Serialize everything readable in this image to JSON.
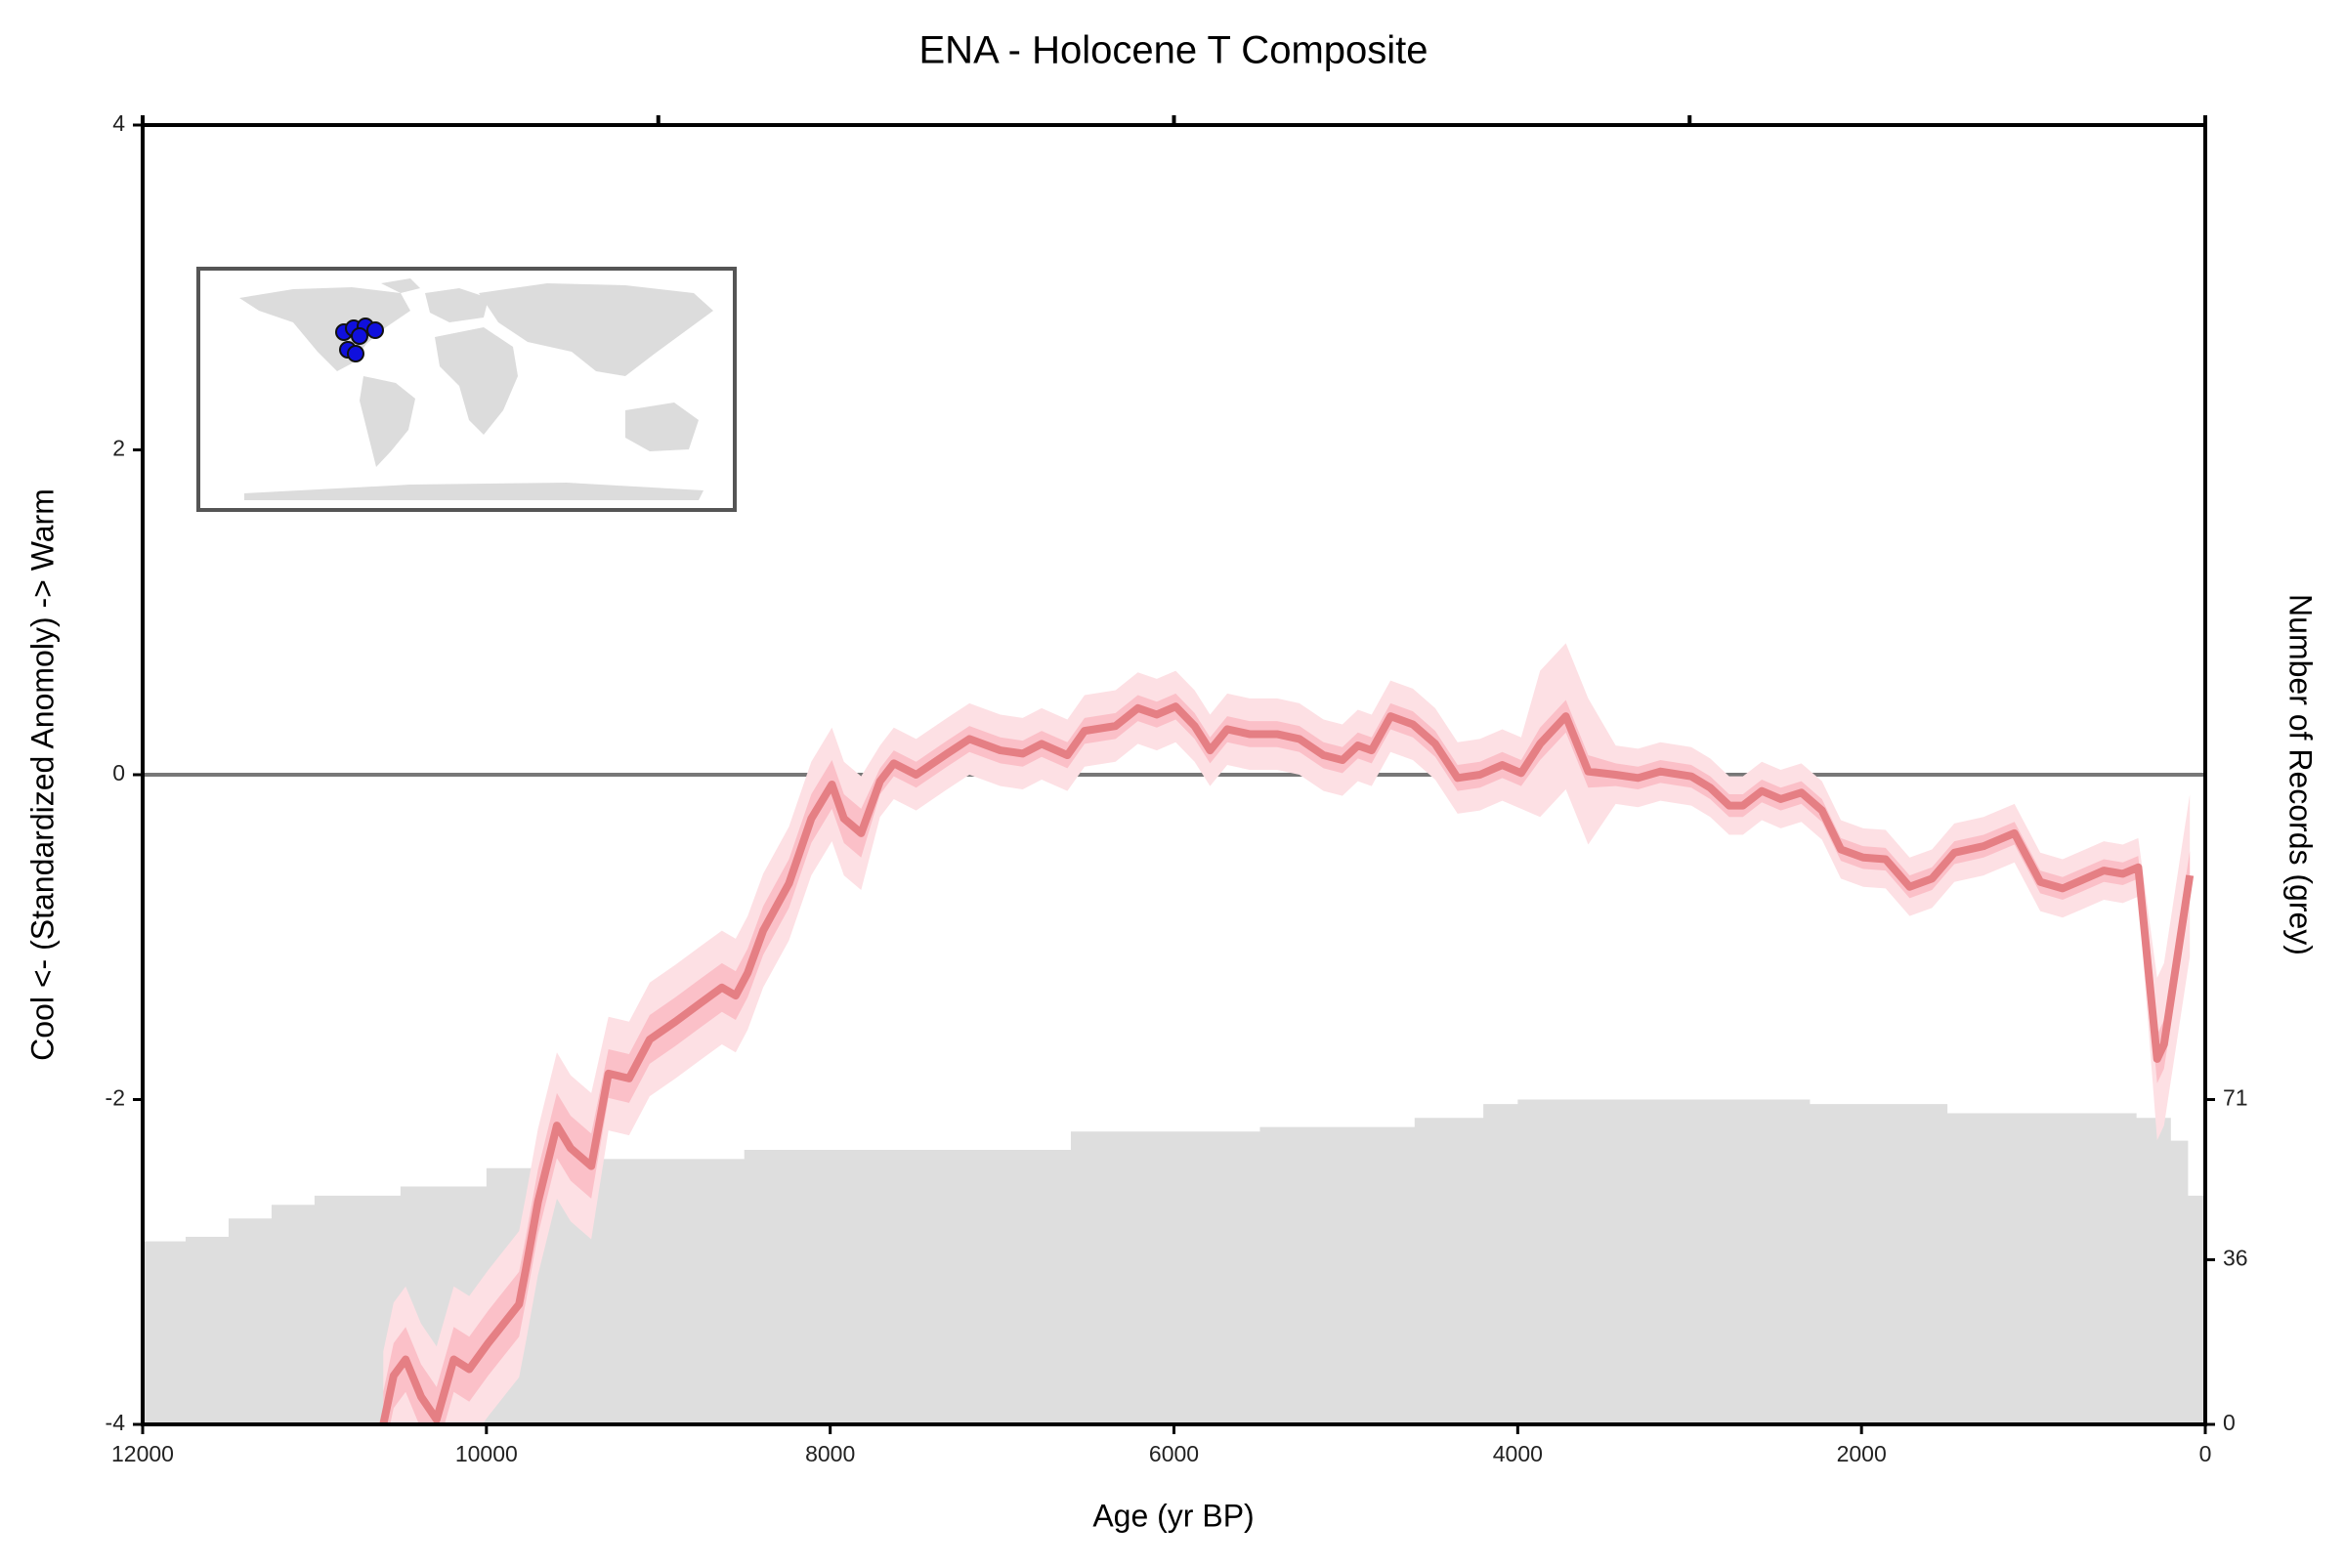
{
  "chart_data": {
    "type": "line",
    "title": "ENA - Holocene T Composite",
    "xlabel": "Age (yr BP)",
    "ylabel": "Cool <- (Standardized Anomoly) -> Warm",
    "y2label": "Number of Records (grey)",
    "xlim": [
      12000,
      0
    ],
    "xticks": [
      12000,
      10000,
      8000,
      6000,
      4000,
      2000,
      0
    ],
    "x2ticks": [
      12000,
      9000,
      6000,
      3000,
      0
    ],
    "ylim": [
      -4,
      4
    ],
    "yticks": [
      -4,
      -2,
      0,
      2,
      4
    ],
    "y2lim": [
      0,
      284
    ],
    "y2ticks": [
      0,
      36,
      71
    ],
    "reference_line": 0,
    "reference_color": "#777777",
    "x": [
      10600,
      10540,
      10470,
      10380,
      10290,
      10190,
      10100,
      9990,
      9810,
      9770,
      9700,
      9590,
      9510,
      9390,
      9290,
      9170,
      9050,
      8900,
      8760,
      8630,
      8550,
      8480,
      8390,
      8240,
      8110,
      7990,
      7920,
      7820,
      7710,
      7630,
      7500,
      7320,
      7190,
      7010,
      6880,
      6770,
      6620,
      6520,
      6340,
      6210,
      6100,
      5990,
      5880,
      5790,
      5690,
      5560,
      5400,
      5270,
      5130,
      5020,
      4930,
      4850,
      4740,
      4610,
      4480,
      4350,
      4220,
      4090,
      3980,
      3870,
      3720,
      3590,
      3430,
      3300,
      3170,
      2990,
      2880,
      2770,
      2690,
      2580,
      2470,
      2350,
      2230,
      2120,
      1990,
      1860,
      1720,
      1590,
      1460,
      1290,
      1110,
      960,
      830,
      720,
      590,
      480,
      390,
      280,
      240,
      90
    ],
    "series": [
      {
        "color": "#e57f84",
        "inner_color": "#fbc0c8",
        "outer_color": "#fde0e4",
        "values": [
          -4.0,
          -3.7,
          -3.6,
          -3.83,
          -3.97,
          -3.6,
          -3.66,
          -3.5,
          -3.26,
          -3.04,
          -2.63,
          -2.16,
          -2.3,
          -2.41,
          -1.84,
          -1.87,
          -1.63,
          -1.52,
          -1.41,
          -1.31,
          -1.36,
          -1.22,
          -0.96,
          -0.67,
          -0.27,
          -0.06,
          -0.27,
          -0.36,
          -0.04,
          0.07,
          0,
          0.13,
          0.22,
          0.15,
          0.13,
          0.19,
          0.12,
          0.27,
          0.3,
          0.41,
          0.37,
          0.42,
          0.3,
          0.15,
          0.28,
          0.25,
          0.25,
          0.22,
          0.12,
          0.09,
          0.18,
          0.15,
          0.36,
          0.31,
          0.19,
          -0.02,
          0,
          0.06,
          0.01,
          0.19,
          0.36,
          0.02,
          0,
          -0.02,
          0.02,
          -0.01,
          -0.08,
          -0.19,
          -0.19,
          -0.1,
          -0.15,
          -0.11,
          -0.22,
          -0.46,
          -0.51,
          -0.52,
          -0.69,
          -0.64,
          -0.48,
          -0.44,
          -0.36,
          -0.66,
          -0.7,
          -0.65,
          -0.59,
          -0.61,
          -0.57,
          -1.75,
          -1.66,
          -0.62
        ],
        "error_inner": [
          0.2,
          0.2,
          0.2,
          0.2,
          0.2,
          0.2,
          0.2,
          0.2,
          0.2,
          0.2,
          0.2,
          0.2,
          0.2,
          0.2,
          0.15,
          0.15,
          0.15,
          0.15,
          0.15,
          0.15,
          0.15,
          0.15,
          0.15,
          0.15,
          0.15,
          0.15,
          0.15,
          0.15,
          0.08,
          0.08,
          0.08,
          0.08,
          0.08,
          0.08,
          0.08,
          0.08,
          0.08,
          0.08,
          0.08,
          0.08,
          0.08,
          0.08,
          0.08,
          0.08,
          0.08,
          0.08,
          0.08,
          0.08,
          0.08,
          0.08,
          0.08,
          0.08,
          0.08,
          0.08,
          0.08,
          0.08,
          0.08,
          0.08,
          0.08,
          0.1,
          0.1,
          0.1,
          0.07,
          0.07,
          0.07,
          0.07,
          0.07,
          0.07,
          0.07,
          0.07,
          0.07,
          0.07,
          0.07,
          0.07,
          0.07,
          0.07,
          0.07,
          0.07,
          0.07,
          0.07,
          0.07,
          0.07,
          0.07,
          0.07,
          0.07,
          0.07,
          0.07,
          0.15,
          0.15,
          0.15
        ],
        "error_outer": [
          0.45,
          0.45,
          0.45,
          0.45,
          0.45,
          0.45,
          0.45,
          0.45,
          0.45,
          0.45,
          0.45,
          0.45,
          0.45,
          0.45,
          0.35,
          0.35,
          0.35,
          0.35,
          0.35,
          0.35,
          0.35,
          0.35,
          0.35,
          0.35,
          0.35,
          0.35,
          0.35,
          0.35,
          0.22,
          0.22,
          0.22,
          0.22,
          0.22,
          0.22,
          0.22,
          0.22,
          0.22,
          0.22,
          0.22,
          0.22,
          0.22,
          0.22,
          0.22,
          0.22,
          0.22,
          0.22,
          0.22,
          0.22,
          0.22,
          0.22,
          0.22,
          0.22,
          0.22,
          0.22,
          0.22,
          0.22,
          0.22,
          0.22,
          0.22,
          0.45,
          0.45,
          0.45,
          0.18,
          0.18,
          0.18,
          0.18,
          0.18,
          0.18,
          0.18,
          0.18,
          0.18,
          0.18,
          0.18,
          0.18,
          0.18,
          0.18,
          0.18,
          0.18,
          0.18,
          0.18,
          0.18,
          0.18,
          0.18,
          0.18,
          0.18,
          0.18,
          0.18,
          0.5,
          0.5,
          0.5
        ]
      }
    ],
    "records": {
      "axis": "y2",
      "color": "#dedede",
      "x": [
        12000,
        11750,
        11500,
        11250,
        11000,
        10500,
        10000,
        9400,
        8500,
        6600,
        5500,
        4600,
        4200,
        4000,
        2300,
        1500,
        400,
        200,
        100,
        0
      ],
      "values": [
        40,
        41,
        45,
        48,
        50,
        52,
        56,
        58,
        60,
        64,
        65,
        67,
        70,
        71,
        70,
        68,
        67,
        62,
        50,
        35
      ]
    }
  }
}
